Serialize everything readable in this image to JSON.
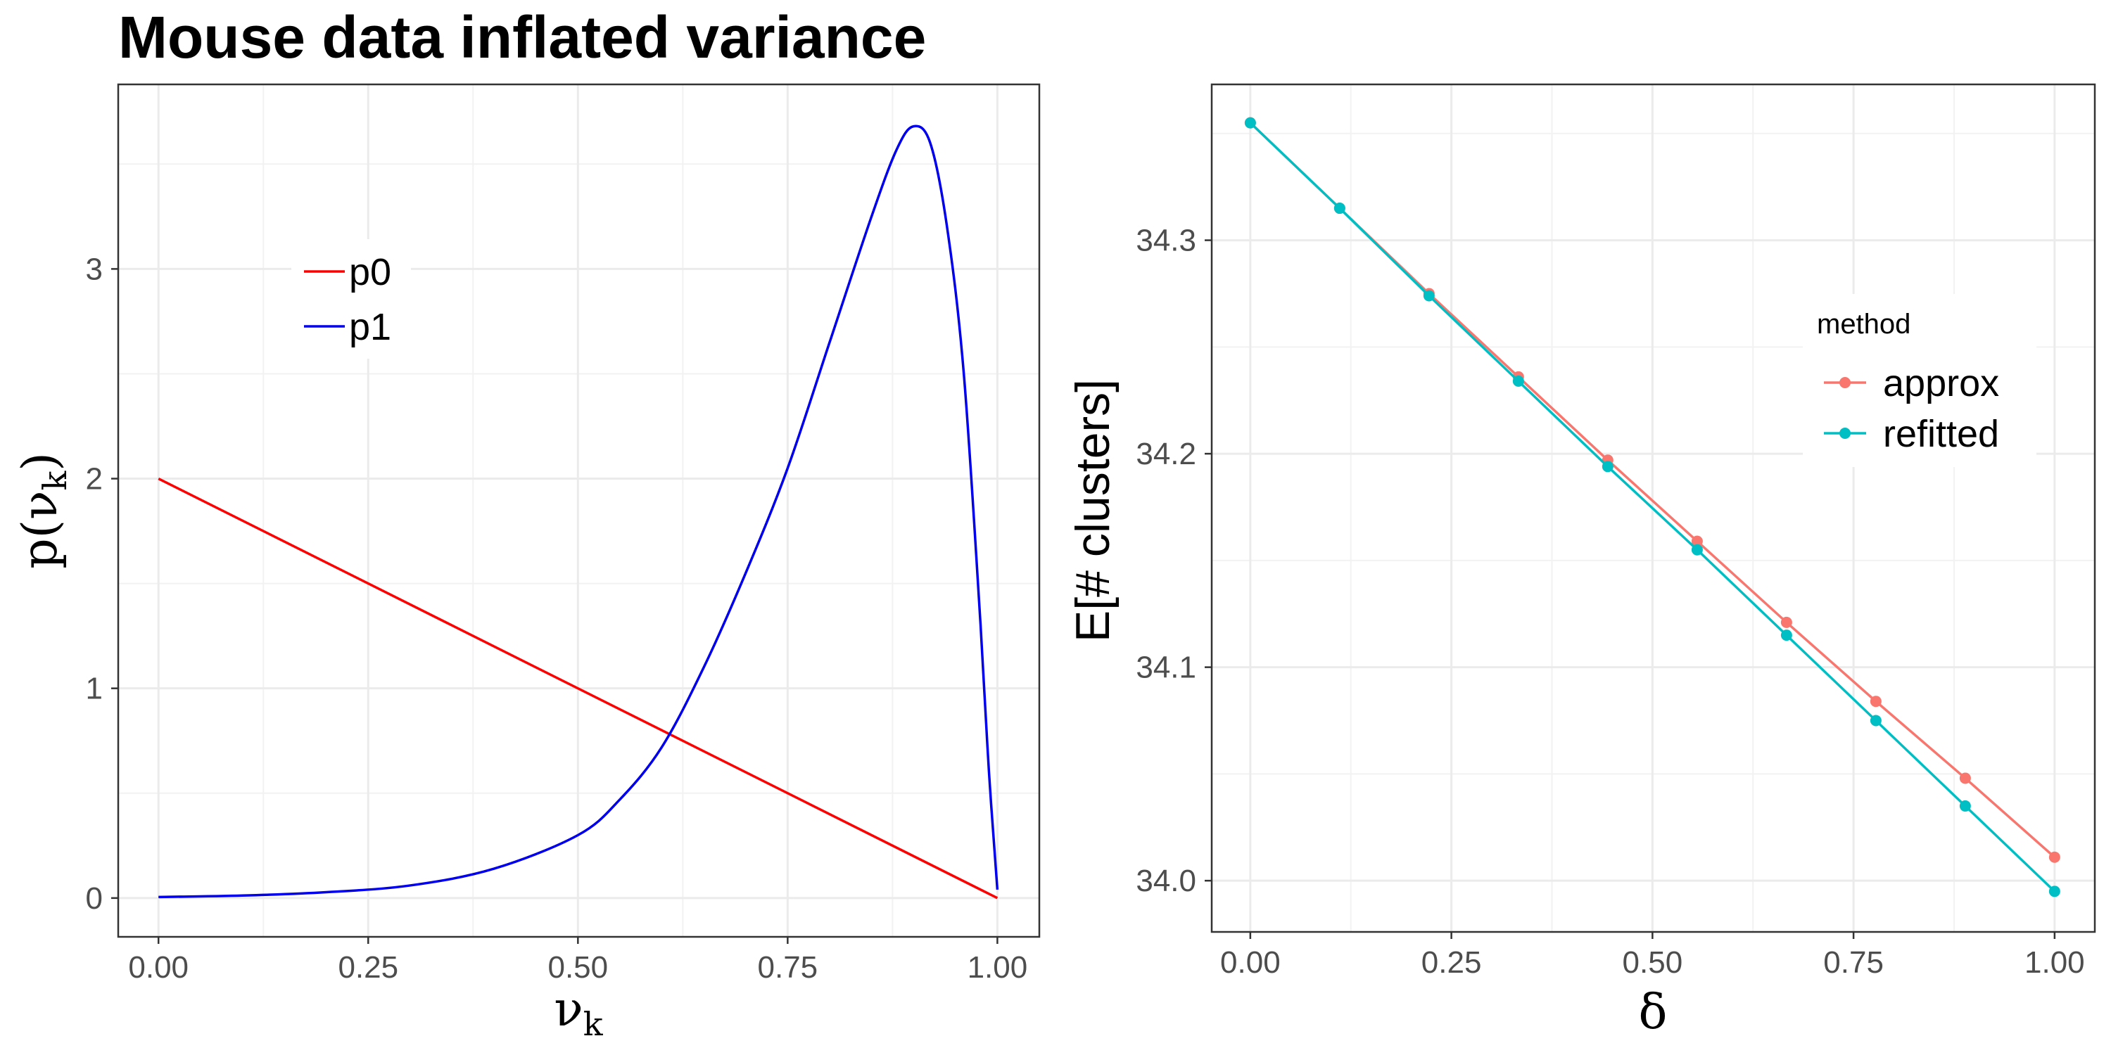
{
  "title": "Mouse data inflated variance",
  "chart_data": [
    {
      "type": "line",
      "xlabel": "ν",
      "xlabel_sub": "k",
      "ylabel_prefix": "p(ν",
      "ylabel_sub": "k",
      "ylabel_suffix": ")",
      "xlim": [
        -0.048,
        1.05
      ],
      "ylim": [
        -0.185,
        3.88
      ],
      "x_ticks": [
        0,
        0.25,
        0.5,
        0.75,
        1
      ],
      "x_tick_labels": [
        "0.00",
        "0.25",
        "0.50",
        "0.75",
        "1.00"
      ],
      "y_ticks": [
        0,
        1,
        2,
        3
      ],
      "y_tick_labels": [
        "0",
        "1",
        "2",
        "3"
      ],
      "grid": true,
      "legend_position": "top-left",
      "series": [
        {
          "name": "p0",
          "color": "#ff0000",
          "x": [
            0,
            1
          ],
          "y": [
            2,
            0
          ]
        },
        {
          "name": "p1",
          "color": "#0000ee",
          "x": [
            0,
            0.1,
            0.2,
            0.3,
            0.4,
            0.5,
            0.55,
            0.6,
            0.65,
            0.7,
            0.75,
            0.8,
            0.85,
            0.88,
            0.9,
            0.92,
            0.94,
            0.96,
            0.98,
            0.99,
            1.0
          ],
          "y": [
            0.005,
            0.012,
            0.028,
            0.06,
            0.14,
            0.3,
            0.47,
            0.72,
            1.1,
            1.55,
            2.05,
            2.65,
            3.25,
            3.57,
            3.68,
            3.6,
            3.2,
            2.5,
            1.3,
            0.6,
            0.04
          ]
        }
      ]
    },
    {
      "type": "line",
      "xlabel": "δ",
      "ylabel": "E[# clusters]",
      "xlim": [
        -0.048,
        1.05
      ],
      "ylim": [
        33.976,
        34.373
      ],
      "x_ticks": [
        0,
        0.25,
        0.5,
        0.75,
        1
      ],
      "x_tick_labels": [
        "0.00",
        "0.25",
        "0.50",
        "0.75",
        "1.00"
      ],
      "y_ticks": [
        34.0,
        34.1,
        34.2,
        34.3
      ],
      "y_tick_labels": [
        "34.0",
        "34.1",
        "34.2",
        "34.3"
      ],
      "grid": true,
      "legend_title": "method",
      "legend_position": "right",
      "series": [
        {
          "name": "approx",
          "color": "#f8766d",
          "x": [
            0,
            0.1111,
            0.2222,
            0.3333,
            0.4444,
            0.5556,
            0.6667,
            0.7778,
            0.8889,
            1.0
          ],
          "y": [
            34.355,
            34.315,
            34.275,
            34.236,
            34.197,
            34.159,
            34.121,
            34.084,
            34.048,
            34.011
          ]
        },
        {
          "name": "refitted",
          "color": "#00bfc4",
          "x": [
            0,
            0.1111,
            0.2222,
            0.3333,
            0.4444,
            0.5556,
            0.6667,
            0.7778,
            0.8889,
            1.0
          ],
          "y": [
            34.355,
            34.315,
            34.274,
            34.234,
            34.194,
            34.155,
            34.115,
            34.075,
            34.035,
            33.995
          ]
        }
      ]
    }
  ]
}
